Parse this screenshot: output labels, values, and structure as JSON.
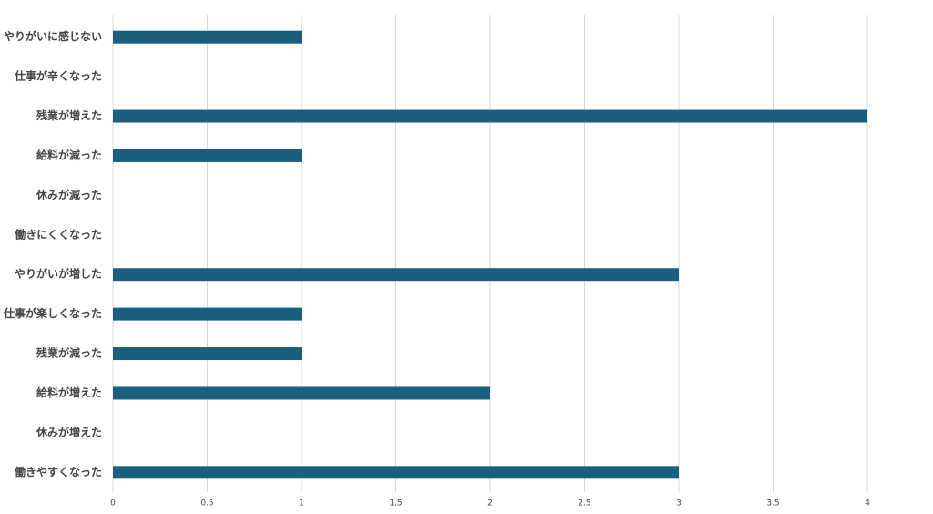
{
  "chart_data": {
    "type": "bar",
    "orientation": "horizontal",
    "categories": [
      "やりがいに感じない",
      "仕事が辛くなった",
      "残業が増えた",
      "給料が減った",
      "休みが減った",
      "働きにくくなった",
      "やりがいが増した",
      "仕事が楽しくなった",
      "残業が減った",
      "給料が増えた",
      "休みが増えた",
      "働きやすくなった"
    ],
    "values": [
      1,
      0,
      4,
      1,
      0,
      0,
      3,
      1,
      1,
      2,
      0,
      3
    ],
    "color": "#1b5f80",
    "xlim": [
      0,
      4
    ],
    "xticks": [
      0,
      0.5,
      1,
      1.5,
      2,
      2.5,
      3,
      3.5,
      4
    ],
    "grid": true
  }
}
